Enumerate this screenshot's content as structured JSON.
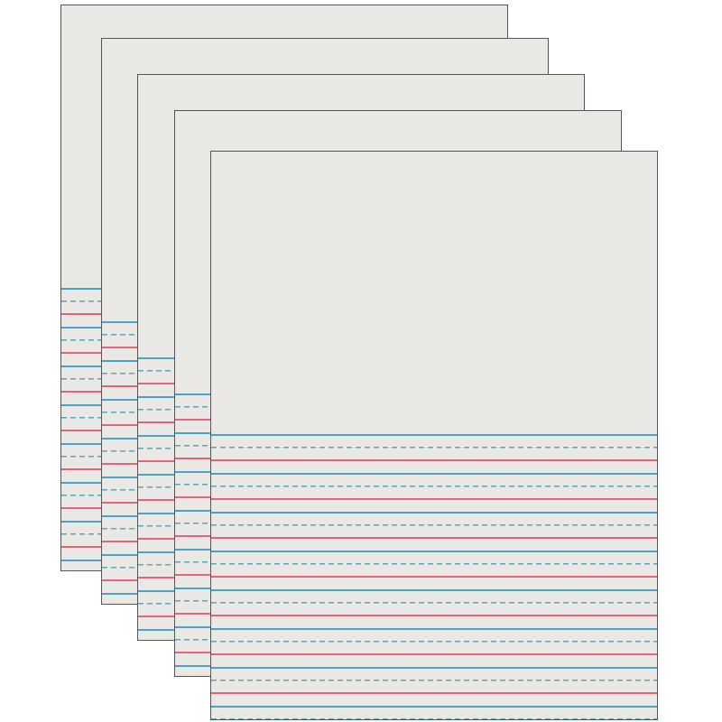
{
  "product": {
    "sheet_count": 5,
    "colors": {
      "paper": "#eae8e4",
      "top_line": "#4aa3c3",
      "dashed_midline": "#5fa6b4",
      "baseline": "#e06679"
    }
  }
}
